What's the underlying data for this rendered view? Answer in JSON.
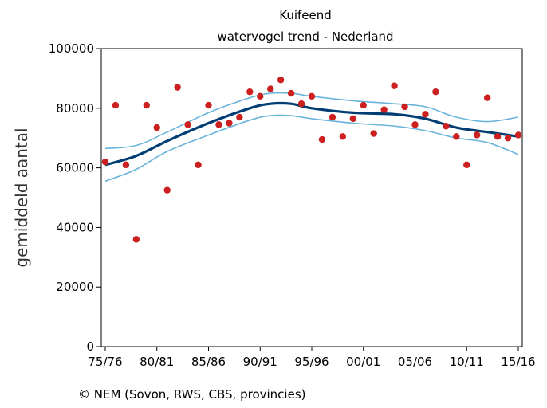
{
  "chart_data": {
    "type": "scatter",
    "title": "Kuifeend",
    "subtitle": "watervogel trend - Nederland",
    "ylabel": "gemiddeld aantal",
    "xlabel": "",
    "ylim": [
      0,
      100000
    ],
    "xlim": [
      0,
      40
    ],
    "grid": false,
    "x_ticks": [
      {
        "x": 0,
        "label": "75/76"
      },
      {
        "x": 5,
        "label": "80/81"
      },
      {
        "x": 10,
        "label": "85/86"
      },
      {
        "x": 15,
        "label": "90/91"
      },
      {
        "x": 20,
        "label": "95/96"
      },
      {
        "x": 25,
        "label": "00/01"
      },
      {
        "x": 30,
        "label": "05/06"
      },
      {
        "x": 35,
        "label": "10/11"
      },
      {
        "x": 40,
        "label": "15/16"
      }
    ],
    "y_ticks": [
      0,
      20000,
      40000,
      60000,
      80000,
      100000
    ],
    "observed": {
      "color": "#cc1f1f",
      "points": [
        [
          0,
          62000
        ],
        [
          1,
          81000
        ],
        [
          2,
          61000
        ],
        [
          3,
          36000
        ],
        [
          4,
          81000
        ],
        [
          5,
          73500
        ],
        [
          6,
          52500
        ],
        [
          7,
          87000
        ],
        [
          8,
          74500
        ],
        [
          9,
          61000
        ],
        [
          10,
          81000
        ],
        [
          11,
          74500
        ],
        [
          12,
          75000
        ],
        [
          13,
          77000
        ],
        [
          14,
          85500
        ],
        [
          15,
          84000
        ],
        [
          16,
          86500
        ],
        [
          17,
          89500
        ],
        [
          18,
          85000
        ],
        [
          19,
          81500
        ],
        [
          20,
          84000
        ],
        [
          21,
          69500
        ],
        [
          22,
          77000
        ],
        [
          23,
          70500
        ],
        [
          24,
          76500
        ],
        [
          25,
          81000
        ],
        [
          26,
          71500
        ],
        [
          27,
          79500
        ],
        [
          28,
          87500
        ],
        [
          29,
          80500
        ],
        [
          30,
          74500
        ],
        [
          31,
          78000
        ],
        [
          32,
          85500
        ],
        [
          33,
          74000
        ],
        [
          34,
          70500
        ],
        [
          35,
          61000
        ],
        [
          36,
          71000
        ],
        [
          37,
          83500
        ],
        [
          38,
          70500
        ],
        [
          39,
          70000
        ],
        [
          40,
          71000
        ]
      ]
    },
    "trend": {
      "color": "#003d73",
      "points": [
        [
          0,
          61000
        ],
        [
          3,
          64000
        ],
        [
          6,
          69000
        ],
        [
          10,
          75000
        ],
        [
          14,
          80000
        ],
        [
          16,
          81500
        ],
        [
          18,
          81500
        ],
        [
          20,
          80000
        ],
        [
          24,
          78500
        ],
        [
          28,
          78000
        ],
        [
          31,
          76500
        ],
        [
          34,
          73500
        ],
        [
          37,
          72000
        ],
        [
          40,
          70500
        ]
      ]
    },
    "upper_band": {
      "color": "#6ab4dc",
      "points": [
        [
          0,
          66500
        ],
        [
          3,
          67500
        ],
        [
          6,
          72000
        ],
        [
          10,
          78500
        ],
        [
          14,
          83500
        ],
        [
          16,
          85000
        ],
        [
          18,
          85000
        ],
        [
          20,
          84000
        ],
        [
          24,
          82500
        ],
        [
          28,
          81500
        ],
        [
          31,
          80500
        ],
        [
          34,
          77000
        ],
        [
          37,
          75500
        ],
        [
          40,
          77000
        ]
      ]
    },
    "lower_band": {
      "color": "#6ab4dc",
      "points": [
        [
          0,
          55500
        ],
        [
          3,
          59500
        ],
        [
          6,
          65500
        ],
        [
          10,
          71000
        ],
        [
          14,
          76000
        ],
        [
          16,
          77500
        ],
        [
          18,
          77500
        ],
        [
          20,
          76500
        ],
        [
          24,
          75000
        ],
        [
          28,
          74000
        ],
        [
          31,
          72500
        ],
        [
          34,
          70000
        ],
        [
          37,
          68500
        ],
        [
          40,
          64500
        ]
      ]
    }
  },
  "credit": "© NEM (Sovon, RWS, CBS, provincies)"
}
